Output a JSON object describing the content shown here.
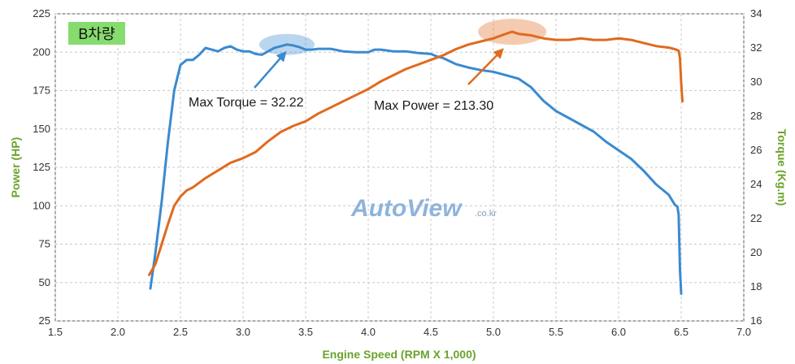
{
  "chart_data": {
    "type": "line",
    "title": "",
    "xlabel": "Engine Speed (RPM X 1,000)",
    "ylabel_left": "Power (HP)",
    "ylabel_right": "Torque (Kg.m)",
    "xlim": [
      1.5,
      7.0
    ],
    "ylim_left": [
      25,
      225
    ],
    "ylim_right": [
      16,
      34
    ],
    "x_ticks": [
      "1.5",
      "2.0",
      "2.5",
      "3.0",
      "3.5",
      "4.0",
      "4.5",
      "5.0",
      "5.5",
      "6.0",
      "6.5",
      "7.0"
    ],
    "y_ticks_left": [
      "25",
      "50",
      "75",
      "100",
      "125",
      "150",
      "175",
      "200",
      "225"
    ],
    "y_ticks_right": [
      "16",
      "18",
      "20",
      "22",
      "24",
      "26",
      "28",
      "30",
      "32",
      "34"
    ],
    "grid": true,
    "badge": "B차량",
    "watermark": "AutoView",
    "watermark_suffix": ".co.kr",
    "series": [
      {
        "axis": "right",
        "color": "#3a8ad0",
        "points": [
          [
            2.26,
            17.9
          ],
          [
            2.3,
            20.0
          ],
          [
            2.35,
            23.0
          ],
          [
            2.4,
            26.5
          ],
          [
            2.45,
            29.5
          ],
          [
            2.5,
            31.0
          ],
          [
            2.55,
            31.3
          ],
          [
            2.6,
            31.3
          ],
          [
            2.65,
            31.6
          ],
          [
            2.7,
            32.0
          ],
          [
            2.75,
            31.9
          ],
          [
            2.8,
            31.8
          ],
          [
            2.85,
            32.0
          ],
          [
            2.9,
            32.1
          ],
          [
            2.95,
            31.9
          ],
          [
            3.0,
            31.8
          ],
          [
            3.05,
            31.8
          ],
          [
            3.1,
            31.65
          ],
          [
            3.15,
            31.6
          ],
          [
            3.2,
            31.8
          ],
          [
            3.25,
            32.0
          ],
          [
            3.3,
            32.1
          ],
          [
            3.35,
            32.2
          ],
          [
            3.4,
            32.15
          ],
          [
            3.45,
            32.05
          ],
          [
            3.5,
            31.9
          ],
          [
            3.55,
            31.9
          ],
          [
            3.6,
            31.95
          ],
          [
            3.7,
            31.95
          ],
          [
            3.8,
            31.8
          ],
          [
            3.9,
            31.75
          ],
          [
            4.0,
            31.75
          ],
          [
            4.05,
            31.9
          ],
          [
            4.1,
            31.9
          ],
          [
            4.15,
            31.85
          ],
          [
            4.2,
            31.8
          ],
          [
            4.3,
            31.8
          ],
          [
            4.4,
            31.7
          ],
          [
            4.5,
            31.65
          ],
          [
            4.55,
            31.5
          ],
          [
            4.6,
            31.4
          ],
          [
            4.7,
            31.05
          ],
          [
            4.8,
            30.85
          ],
          [
            4.9,
            30.7
          ],
          [
            5.0,
            30.6
          ],
          [
            5.1,
            30.4
          ],
          [
            5.2,
            30.2
          ],
          [
            5.3,
            29.7
          ],
          [
            5.4,
            28.9
          ],
          [
            5.5,
            28.3
          ],
          [
            5.6,
            27.9
          ],
          [
            5.7,
            27.5
          ],
          [
            5.8,
            27.1
          ],
          [
            5.9,
            26.5
          ],
          [
            6.0,
            26.0
          ],
          [
            6.1,
            25.5
          ],
          [
            6.2,
            24.8
          ],
          [
            6.3,
            24.0
          ],
          [
            6.4,
            23.4
          ],
          [
            6.45,
            22.8
          ],
          [
            6.47,
            22.7
          ],
          [
            6.48,
            22.2
          ],
          [
            6.49,
            19.0
          ],
          [
            6.5,
            17.6
          ]
        ]
      },
      {
        "axis": "left",
        "color": "#e06a1e",
        "points": [
          [
            2.25,
            55
          ],
          [
            2.3,
            62
          ],
          [
            2.35,
            75
          ],
          [
            2.4,
            88
          ],
          [
            2.45,
            100
          ],
          [
            2.5,
            106
          ],
          [
            2.55,
            110
          ],
          [
            2.6,
            112
          ],
          [
            2.7,
            118
          ],
          [
            2.8,
            123
          ],
          [
            2.9,
            128
          ],
          [
            3.0,
            131
          ],
          [
            3.1,
            135
          ],
          [
            3.2,
            142
          ],
          [
            3.3,
            148
          ],
          [
            3.4,
            152
          ],
          [
            3.5,
            155
          ],
          [
            3.6,
            160
          ],
          [
            3.7,
            164
          ],
          [
            3.8,
            168
          ],
          [
            3.9,
            172
          ],
          [
            4.0,
            176
          ],
          [
            4.1,
            181
          ],
          [
            4.2,
            185
          ],
          [
            4.3,
            189
          ],
          [
            4.4,
            192
          ],
          [
            4.5,
            195
          ],
          [
            4.6,
            198
          ],
          [
            4.7,
            202
          ],
          [
            4.8,
            205
          ],
          [
            4.9,
            207
          ],
          [
            5.0,
            209
          ],
          [
            5.1,
            212
          ],
          [
            5.15,
            213.3
          ],
          [
            5.2,
            212
          ],
          [
            5.3,
            211
          ],
          [
            5.4,
            209
          ],
          [
            5.5,
            208
          ],
          [
            5.6,
            208
          ],
          [
            5.7,
            209
          ],
          [
            5.8,
            208
          ],
          [
            5.9,
            208
          ],
          [
            6.0,
            209
          ],
          [
            6.1,
            208
          ],
          [
            6.2,
            206
          ],
          [
            6.3,
            204
          ],
          [
            6.4,
            203
          ],
          [
            6.45,
            202
          ],
          [
            6.48,
            201
          ],
          [
            6.49,
            196
          ],
          [
            6.5,
            180
          ],
          [
            6.51,
            168
          ]
        ]
      }
    ],
    "annotations": [
      {
        "text": "Max Torque = 32.22",
        "series": 0,
        "at": [
          3.35,
          32.2
        ]
      },
      {
        "text": "Max Power = 213.30",
        "series": 1,
        "at": [
          5.15,
          213.3
        ]
      }
    ]
  }
}
